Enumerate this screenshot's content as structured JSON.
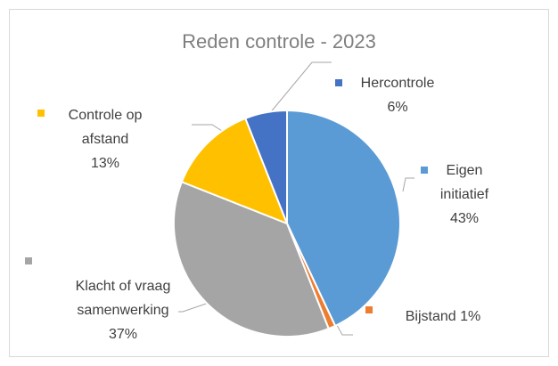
{
  "chart_data": {
    "type": "pie",
    "title": "Reden controle - 2023",
    "categories": [
      "Eigen initiatief",
      "Bijstand",
      "Klacht of vraag samenwerking",
      "Controle op afstand",
      "Hercontrole"
    ],
    "values": [
      43,
      1,
      37,
      13,
      6
    ],
    "value_labels": [
      "43%",
      "1%",
      "37%",
      "13%",
      "6%"
    ],
    "colors": [
      "#5b9bd5",
      "#ed7d31",
      "#a5a5a5",
      "#ffc000",
      "#4472c4"
    ]
  }
}
